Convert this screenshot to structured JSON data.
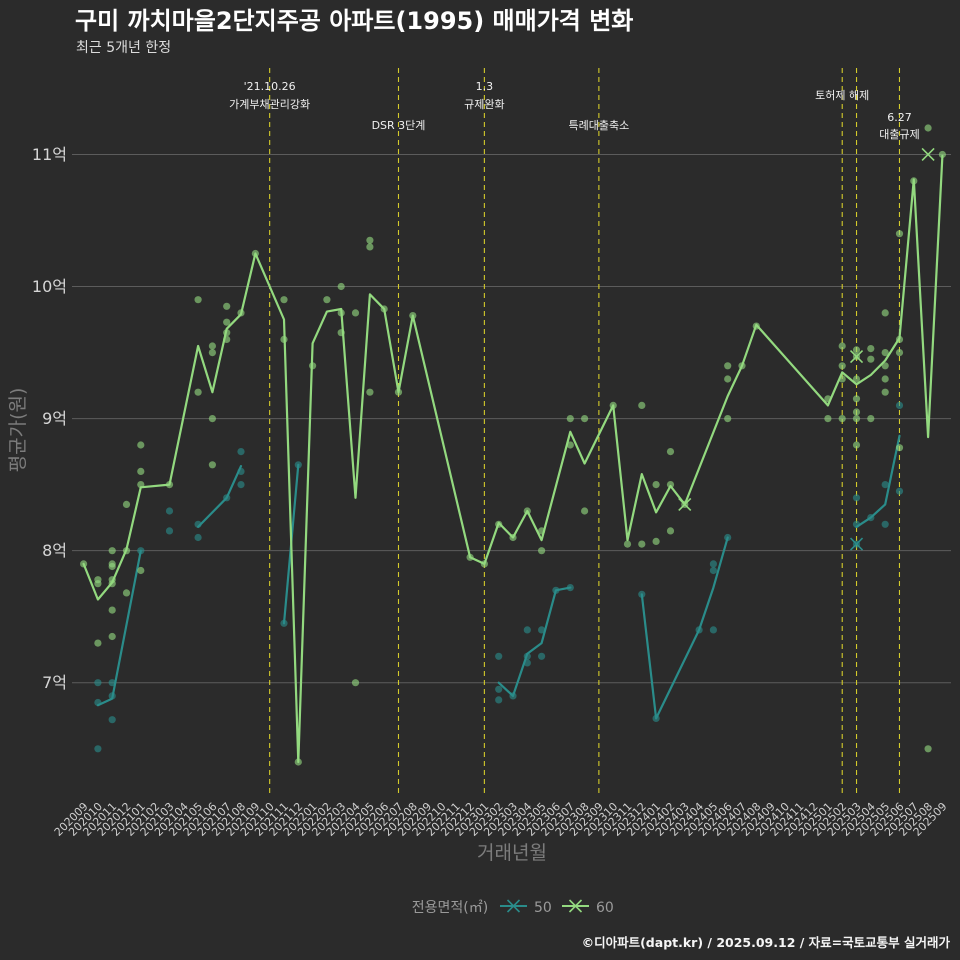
{
  "colors": {
    "background": "#2b2b2b",
    "grid": "#5c5c5c",
    "event_line": "#d4cb2b"
  },
  "chart_data": {
    "type": "line",
    "title": "구미 까치마을2단지주공 아파트(1995) 매매가격 변화",
    "subtitle": "최근 5개년 한정",
    "caption": "©디아파트(dapt.kr) / 2025.09.12 / 자료=국토교통부 실거래가",
    "xlabel": "거래년월",
    "ylabel": "평균가(원)",
    "ylim": [
      6.15,
      11.7
    ],
    "y_ticks": [
      7,
      8,
      9,
      10,
      11
    ],
    "y_tick_labels": [
      "7억",
      "8억",
      "9억",
      "10억",
      "11억"
    ],
    "grid": "horizontal",
    "legend": {
      "title": "전용면적(㎡)",
      "position": "bottom"
    },
    "categories": [
      "202009",
      "202010",
      "202011",
      "202012",
      "202101",
      "202102",
      "202103",
      "202104",
      "202105",
      "202106",
      "202107",
      "202108",
      "202109",
      "202110",
      "202111",
      "202112",
      "202201",
      "202202",
      "202203",
      "202204",
      "202205",
      "202206",
      "202207",
      "202208",
      "202209",
      "202210",
      "202211",
      "202212",
      "202301",
      "202302",
      "202303",
      "202304",
      "202305",
      "202306",
      "202307",
      "202308",
      "202309",
      "202310",
      "202311",
      "202312",
      "202401",
      "202402",
      "202403",
      "202404",
      "202405",
      "202406",
      "202407",
      "202408",
      "202409",
      "202410",
      "202411",
      "202412",
      "202501",
      "202502",
      "202503",
      "202504",
      "202505",
      "202506",
      "202507",
      "202508",
      "202509"
    ],
    "events": [
      {
        "date": "202110",
        "label": [
          "'21.10.26",
          "가계부채관리강화"
        ]
      },
      {
        "date": "202207",
        "label": [
          "DSR 3단계"
        ]
      },
      {
        "date": "202301",
        "label": [
          "1.3",
          "규제완화"
        ]
      },
      {
        "date": "202309",
        "label": [
          "특례대출축소"
        ]
      },
      {
        "date": "202502",
        "label": [
          "토허제 해제"
        ]
      },
      {
        "date": "202503",
        "label": []
      },
      {
        "date": "202506",
        "label": [
          "6.27",
          "대출규제"
        ]
      }
    ],
    "series": [
      {
        "name": "50",
        "color": "#2a8c8a",
        "segments": [
          [
            [
              "202010",
              6.83
            ],
            [
              "202011",
              6.88
            ],
            [
              "202101",
              8.0
            ]
          ],
          [
            [
              "202105",
              8.18
            ],
            [
              "202107",
              8.4
            ],
            [
              "202108",
              8.64
            ]
          ],
          [
            [
              "202111",
              7.45
            ],
            [
              "202112",
              8.65
            ]
          ],
          [
            [
              "202302",
              7.0
            ],
            [
              "202303",
              6.9
            ],
            [
              "202304",
              7.22
            ],
            [
              "202305",
              7.3
            ],
            [
              "202306",
              7.7
            ],
            [
              "202307",
              7.72
            ]
          ],
          [
            [
              "202312",
              7.67
            ],
            [
              "202401",
              6.73
            ],
            [
              "202404",
              7.4
            ],
            [
              "202405",
              7.72
            ],
            [
              "202406",
              8.1
            ]
          ],
          [
            [
              "202503",
              8.18
            ],
            [
              "202504",
              8.25
            ],
            [
              "202505",
              8.35
            ],
            [
              "202506",
              8.87
            ]
          ]
        ],
        "points": [
          [
            "202010",
            7.0
          ],
          [
            "202010",
            6.85
          ],
          [
            "202010",
            6.5
          ],
          [
            "202011",
            7.0
          ],
          [
            "202011",
            6.9
          ],
          [
            "202011",
            6.72
          ],
          [
            "202101",
            8.0
          ],
          [
            "202103",
            8.3
          ],
          [
            "202103",
            8.15
          ],
          [
            "202105",
            8.2
          ],
          [
            "202105",
            8.1
          ],
          [
            "202107",
            8.4
          ],
          [
            "202108",
            8.75
          ],
          [
            "202108",
            8.6
          ],
          [
            "202108",
            8.5
          ],
          [
            "202111",
            7.45
          ],
          [
            "202112",
            8.65
          ],
          [
            "202302",
            7.2
          ],
          [
            "202302",
            6.95
          ],
          [
            "202302",
            6.87
          ],
          [
            "202303",
            6.9
          ],
          [
            "202304",
            7.4
          ],
          [
            "202304",
            7.2
          ],
          [
            "202304",
            7.15
          ],
          [
            "202305",
            7.4
          ],
          [
            "202305",
            7.2
          ],
          [
            "202306",
            7.7
          ],
          [
            "202307",
            7.72
          ],
          [
            "202312",
            7.67
          ],
          [
            "202401",
            6.73
          ],
          [
            "202404",
            7.4
          ],
          [
            "202405",
            7.9
          ],
          [
            "202405",
            7.85
          ],
          [
            "202405",
            7.4
          ],
          [
            "202406",
            8.1
          ],
          [
            "202503",
            8.4
          ],
          [
            "202503",
            8.2
          ],
          [
            "202503",
            8.05
          ],
          [
            "202504",
            8.25
          ],
          [
            "202505",
            8.5
          ],
          [
            "202505",
            8.2
          ],
          [
            "202506",
            9.1
          ],
          [
            "202506",
            8.45
          ]
        ],
        "cross_markers": [
          [
            "202503",
            8.05
          ]
        ]
      },
      {
        "name": "60",
        "color": "#93d97f",
        "segments": [
          [
            [
              "202009",
              7.9
            ],
            [
              "202010",
              7.63
            ],
            [
              "202011",
              7.76
            ],
            [
              "202012",
              8.01
            ],
            [
              "202101",
              8.48
            ],
            [
              "202103",
              8.5
            ],
            [
              "202105",
              9.55
            ],
            [
              "202106",
              9.2
            ],
            [
              "202107",
              9.68
            ],
            [
              "202108",
              9.79
            ],
            [
              "202109",
              10.25
            ],
            [
              "202111",
              9.75
            ],
            [
              "202112",
              6.4
            ],
            [
              "202201",
              9.57
            ],
            [
              "202202",
              9.81
            ],
            [
              "202203",
              9.83
            ],
            [
              "202204",
              8.4
            ],
            [
              "202205",
              9.94
            ],
            [
              "202206",
              9.83
            ],
            [
              "202207",
              9.2
            ],
            [
              "202208",
              9.78
            ],
            [
              "202212",
              7.95
            ],
            [
              "202301",
              7.9
            ],
            [
              "202302",
              8.21
            ],
            [
              "202303",
              8.1
            ],
            [
              "202304",
              8.3
            ],
            [
              "202305",
              8.08
            ],
            [
              "202307",
              8.9
            ],
            [
              "202308",
              8.66
            ],
            [
              "202310",
              9.1
            ],
            [
              "202311",
              8.08
            ],
            [
              "202312",
              8.58
            ],
            [
              "202401",
              8.29
            ],
            [
              "202402",
              8.49
            ],
            [
              "202403",
              8.35
            ],
            [
              "202406",
              9.17
            ],
            [
              "202407",
              9.4
            ],
            [
              "202408",
              9.71
            ],
            [
              "202501",
              9.1
            ],
            [
              "202502",
              9.35
            ],
            [
              "202503",
              9.26
            ],
            [
              "202504",
              9.33
            ],
            [
              "202505",
              9.44
            ],
            [
              "202506",
              9.61
            ],
            [
              "202507",
              10.81
            ],
            [
              "202508",
              8.86
            ],
            [
              "202509",
              10.99
            ]
          ]
        ],
        "points": [
          [
            "202009",
            7.9
          ],
          [
            "202010",
            7.78
          ],
          [
            "202010",
            7.75
          ],
          [
            "202010",
            7.3
          ],
          [
            "202011",
            8.0
          ],
          [
            "202011",
            7.9
          ],
          [
            "202011",
            7.88
          ],
          [
            "202011",
            7.78
          ],
          [
            "202011",
            7.75
          ],
          [
            "202011",
            7.55
          ],
          [
            "202011",
            7.35
          ],
          [
            "202012",
            8.35
          ],
          [
            "202012",
            8.0
          ],
          [
            "202012",
            7.68
          ],
          [
            "202101",
            8.8
          ],
          [
            "202101",
            8.6
          ],
          [
            "202101",
            8.5
          ],
          [
            "202101",
            7.85
          ],
          [
            "202103",
            8.5
          ],
          [
            "202105",
            9.9
          ],
          [
            "202105",
            9.2
          ],
          [
            "202106",
            9.55
          ],
          [
            "202106",
            9.5
          ],
          [
            "202106",
            9.0
          ],
          [
            "202106",
            8.65
          ],
          [
            "202107",
            9.85
          ],
          [
            "202107",
            9.73
          ],
          [
            "202107",
            9.65
          ],
          [
            "202107",
            9.6
          ],
          [
            "202108",
            9.8
          ],
          [
            "202109",
            10.25
          ],
          [
            "202111",
            9.9
          ],
          [
            "202111",
            9.6
          ],
          [
            "202112",
            6.4
          ],
          [
            "202201",
            9.4
          ],
          [
            "202202",
            9.9
          ],
          [
            "202203",
            10.0
          ],
          [
            "202203",
            9.8
          ],
          [
            "202203",
            9.65
          ],
          [
            "202204",
            9.8
          ],
          [
            "202204",
            7.0
          ],
          [
            "202205",
            10.35
          ],
          [
            "202205",
            10.3
          ],
          [
            "202205",
            9.2
          ],
          [
            "202206",
            9.83
          ],
          [
            "202207",
            9.2
          ],
          [
            "202208",
            9.78
          ],
          [
            "202212",
            7.95
          ],
          [
            "202301",
            7.9
          ],
          [
            "202302",
            8.2
          ],
          [
            "202303",
            8.1
          ],
          [
            "202304",
            8.3
          ],
          [
            "202305",
            8.15
          ],
          [
            "202305",
            8.0
          ],
          [
            "202307",
            9.0
          ],
          [
            "202307",
            8.8
          ],
          [
            "202308",
            9.0
          ],
          [
            "202308",
            8.3
          ],
          [
            "202310",
            9.1
          ],
          [
            "202311",
            8.05
          ],
          [
            "202312",
            9.1
          ],
          [
            "202312",
            8.05
          ],
          [
            "202401",
            8.5
          ],
          [
            "202401",
            8.07
          ],
          [
            "202402",
            8.75
          ],
          [
            "202402",
            8.5
          ],
          [
            "202402",
            8.15
          ],
          [
            "202403",
            8.35
          ],
          [
            "202406",
            9.4
          ],
          [
            "202406",
            9.3
          ],
          [
            "202406",
            9.0
          ],
          [
            "202407",
            9.4
          ],
          [
            "202408",
            9.7
          ],
          [
            "202501",
            9.15
          ],
          [
            "202501",
            9.0
          ],
          [
            "202502",
            9.55
          ],
          [
            "202502",
            9.4
          ],
          [
            "202502",
            9.3
          ],
          [
            "202502",
            9.0
          ],
          [
            "202503",
            9.52
          ],
          [
            "202503",
            9.47
          ],
          [
            "202503",
            9.3
          ],
          [
            "202503",
            9.15
          ],
          [
            "202503",
            9.05
          ],
          [
            "202503",
            9.0
          ],
          [
            "202503",
            8.8
          ],
          [
            "202504",
            9.53
          ],
          [
            "202504",
            9.45
          ],
          [
            "202504",
            9.0
          ],
          [
            "202505",
            9.8
          ],
          [
            "202505",
            9.5
          ],
          [
            "202505",
            9.4
          ],
          [
            "202505",
            9.3
          ],
          [
            "202505",
            9.2
          ],
          [
            "202506",
            10.4
          ],
          [
            "202506",
            9.6
          ],
          [
            "202506",
            9.5
          ],
          [
            "202506",
            8.78
          ],
          [
            "202507",
            10.8
          ],
          [
            "202508",
            11.2
          ],
          [
            "202508",
            6.5
          ],
          [
            "202509",
            11.0
          ]
        ],
        "cross_markers": [
          [
            "202403",
            8.35
          ],
          [
            "202503",
            9.47
          ],
          [
            "202508",
            11.0
          ]
        ]
      }
    ]
  }
}
